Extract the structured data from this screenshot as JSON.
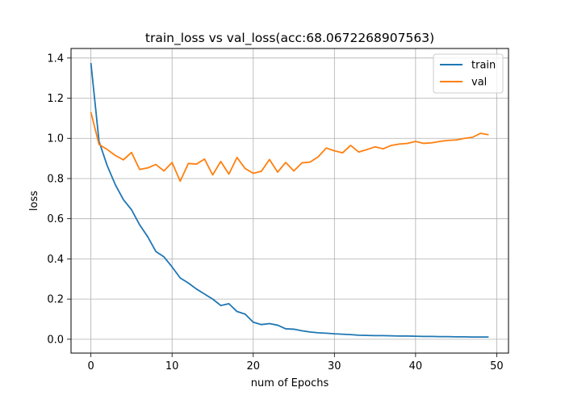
{
  "chart_data": {
    "type": "line",
    "title": "train_loss vs val_loss(acc:68.0672268907563)",
    "xlabel": "num of Epochs",
    "ylabel": "loss",
    "xlim": [
      -2.45,
      51.45
    ],
    "ylim": [
      -0.069,
      1.4475
    ],
    "xticks": [
      0,
      10,
      20,
      30,
      40,
      50
    ],
    "yticks": [
      0.0,
      0.2,
      0.4,
      0.6,
      0.8,
      1.0,
      1.2,
      1.4
    ],
    "xtick_labels": [
      "0",
      "10",
      "20",
      "30",
      "40",
      "50"
    ],
    "ytick_labels": [
      "0.0",
      "0.2",
      "0.4",
      "0.6",
      "0.8",
      "1.0",
      "1.2",
      "1.4"
    ],
    "grid": true,
    "legend_position": "top-right",
    "x": [
      0,
      1,
      2,
      3,
      4,
      5,
      6,
      7,
      8,
      9,
      10,
      11,
      12,
      13,
      14,
      15,
      16,
      17,
      18,
      19,
      20,
      21,
      22,
      23,
      24,
      25,
      26,
      27,
      28,
      29,
      30,
      31,
      32,
      33,
      34,
      35,
      36,
      37,
      38,
      39,
      40,
      41,
      42,
      43,
      44,
      45,
      46,
      47,
      48,
      49
    ],
    "series": [
      {
        "name": "train",
        "color": "#1f77b4",
        "values": [
          1.375,
          0.985,
          0.865,
          0.77,
          0.695,
          0.645,
          0.57,
          0.51,
          0.437,
          0.41,
          0.36,
          0.305,
          0.28,
          0.25,
          0.225,
          0.2,
          0.168,
          0.177,
          0.138,
          0.125,
          0.085,
          0.073,
          0.078,
          0.07,
          0.052,
          0.05,
          0.042,
          0.036,
          0.032,
          0.03,
          0.027,
          0.025,
          0.023,
          0.02,
          0.019,
          0.018,
          0.018,
          0.017,
          0.016,
          0.016,
          0.015,
          0.014,
          0.014,
          0.013,
          0.013,
          0.012,
          0.012,
          0.011,
          0.011,
          0.011
        ]
      },
      {
        "name": "val",
        "color": "#ff7f0e",
        "values": [
          1.13,
          0.97,
          0.945,
          0.915,
          0.893,
          0.93,
          0.845,
          0.853,
          0.87,
          0.838,
          0.88,
          0.787,
          0.875,
          0.872,
          0.897,
          0.818,
          0.885,
          0.822,
          0.905,
          0.85,
          0.826,
          0.836,
          0.895,
          0.832,
          0.88,
          0.838,
          0.878,
          0.882,
          0.908,
          0.952,
          0.938,
          0.928,
          0.965,
          0.932,
          0.944,
          0.958,
          0.948,
          0.965,
          0.972,
          0.975,
          0.985,
          0.975,
          0.978,
          0.985,
          0.99,
          0.992,
          1.0,
          1.005,
          1.025,
          1.018
        ]
      }
    ]
  }
}
